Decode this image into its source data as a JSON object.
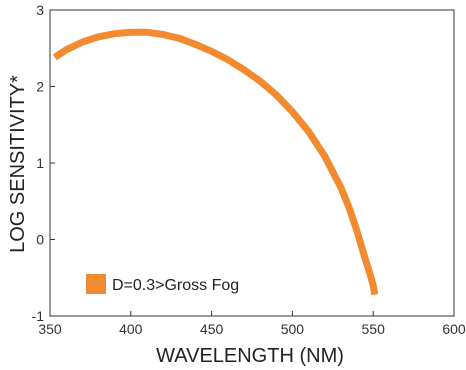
{
  "chart_data": {
    "type": "line",
    "title": "",
    "xlabel": "WAVELENGTH (NM)",
    "ylabel": "LOG SENSITIVITY*",
    "xlim": [
      350,
      600
    ],
    "ylim": [
      -1,
      3
    ],
    "xticks": [
      350,
      400,
      450,
      500,
      550,
      600
    ],
    "yticks": [
      -1,
      0,
      1,
      2,
      3
    ],
    "grid": false,
    "legend_position": "bottom-left",
    "series": [
      {
        "name": "D=0.3>Gross Fog",
        "color": "#f28a30",
        "x": [
          353,
          360,
          370,
          380,
          390,
          400,
          410,
          420,
          430,
          440,
          450,
          460,
          470,
          480,
          490,
          500,
          510,
          520,
          530,
          535,
          540,
          545,
          548,
          550,
          551
        ],
        "y": [
          2.38,
          2.48,
          2.58,
          2.65,
          2.69,
          2.71,
          2.71,
          2.68,
          2.63,
          2.55,
          2.46,
          2.35,
          2.22,
          2.07,
          1.89,
          1.67,
          1.41,
          1.09,
          0.68,
          0.42,
          0.11,
          -0.25,
          -0.45,
          -0.6,
          -0.72
        ]
      }
    ]
  }
}
